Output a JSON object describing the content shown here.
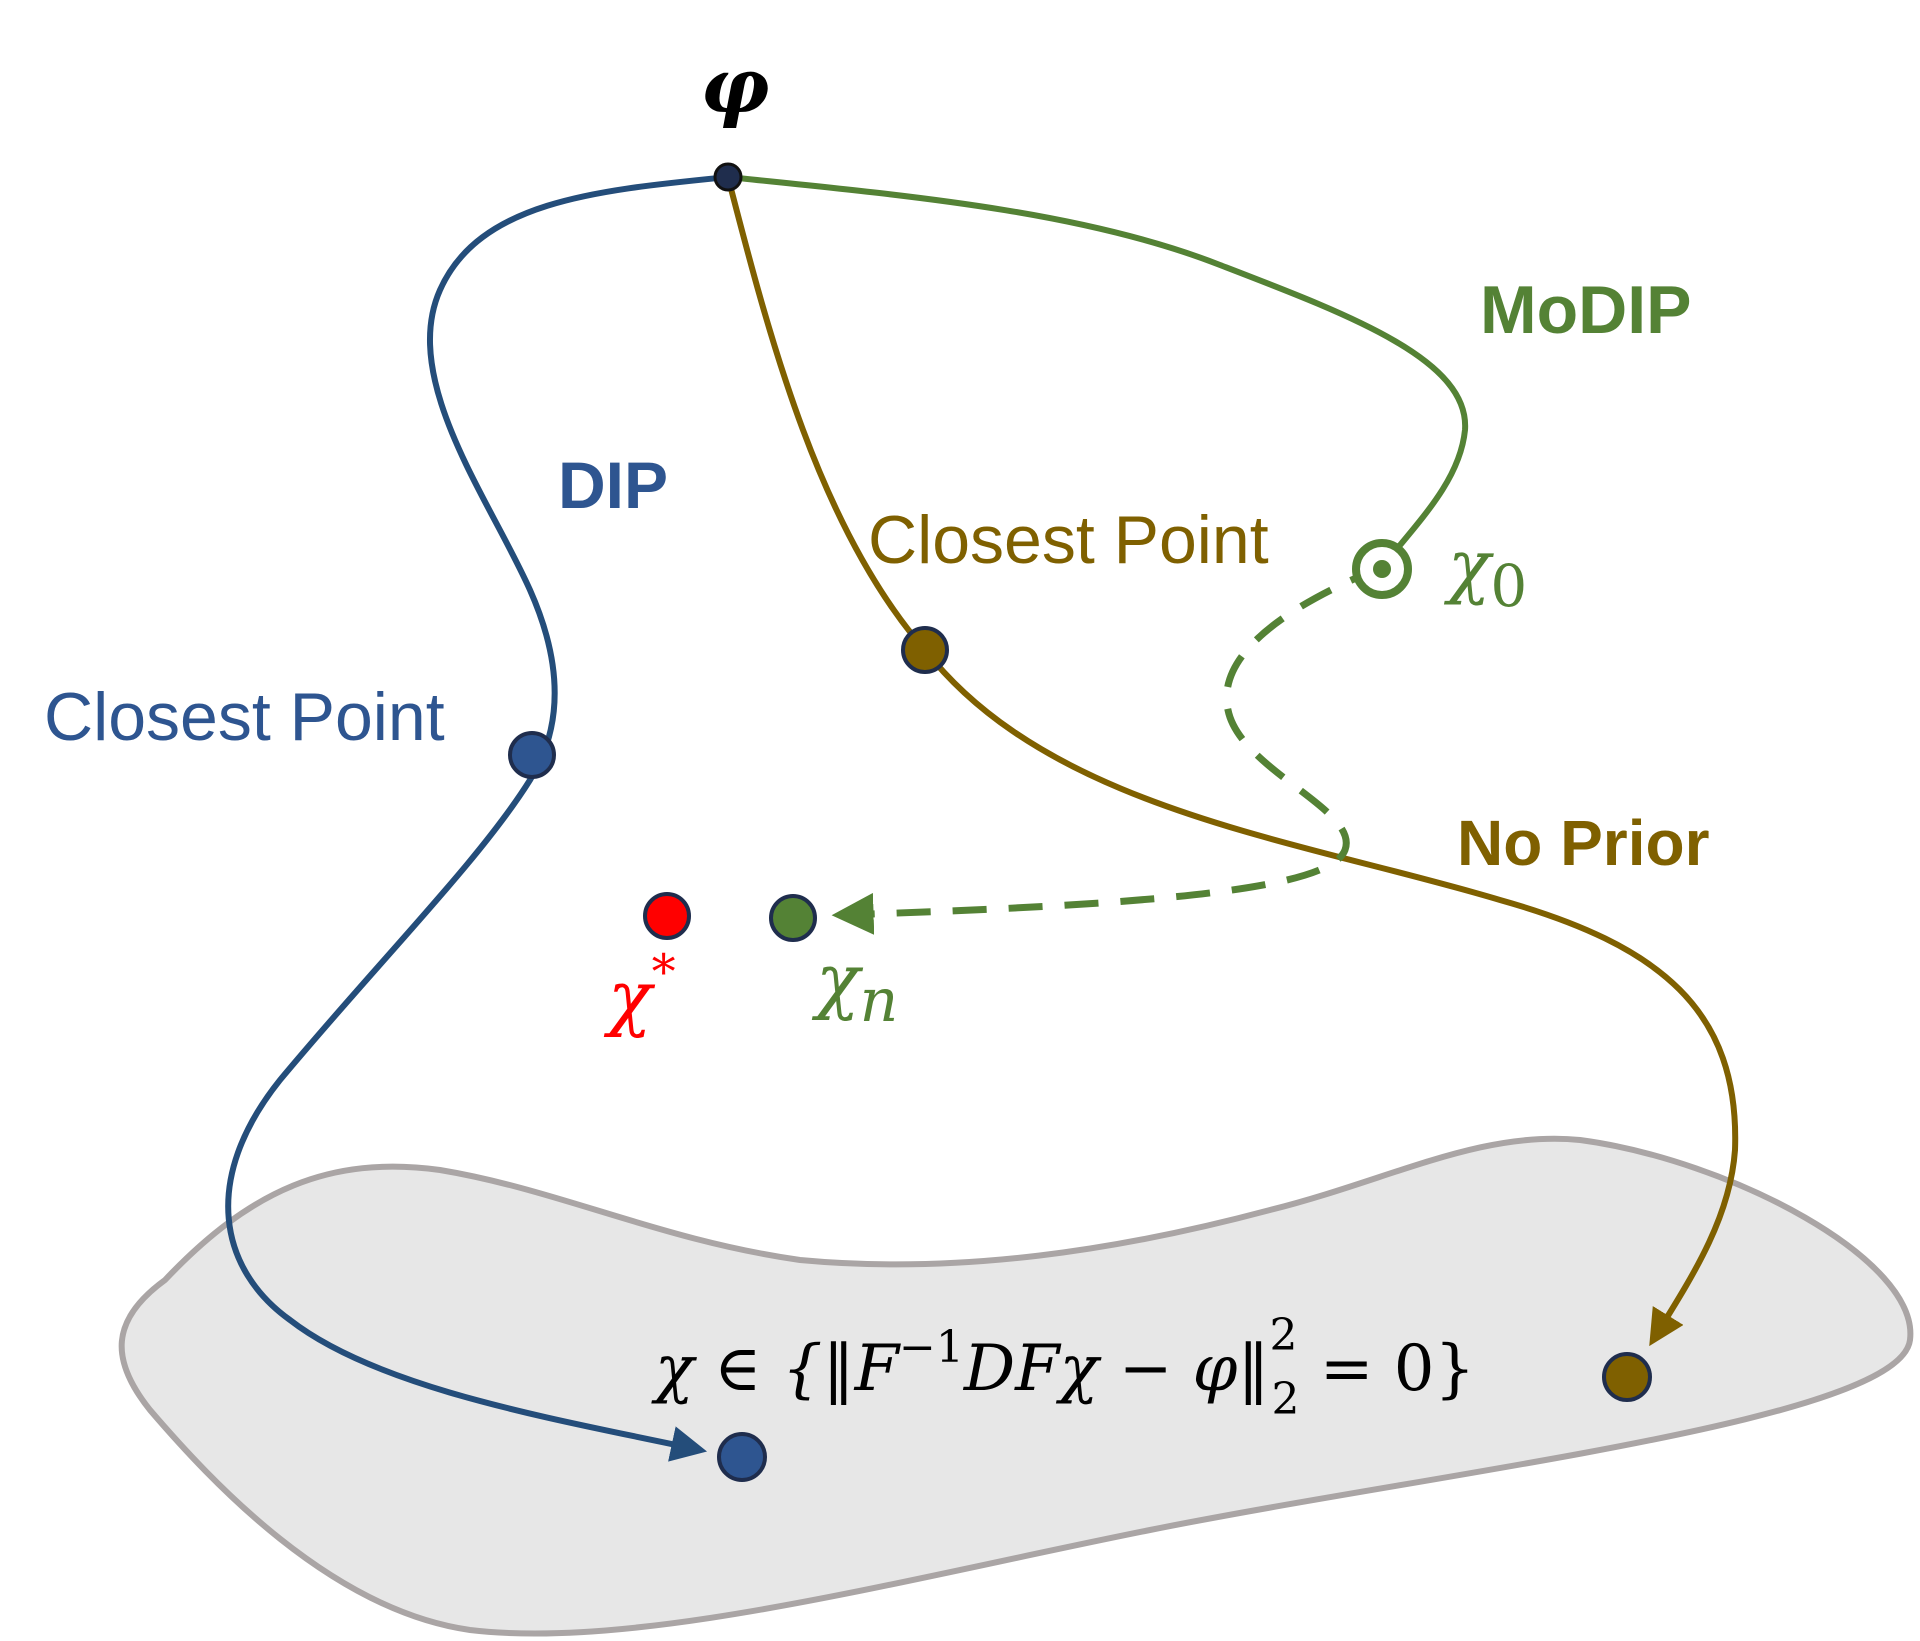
{
  "colors": {
    "dip": "#2e5590",
    "dip_curve": "#244d7a",
    "modip": "#548235",
    "noprior": "#7f6000",
    "target": "#ff0000",
    "region_fill": "#e7e7e7",
    "region_stroke": "#aaa5a5",
    "point_stroke": "#1f2d4d"
  },
  "labels": {
    "phi": "φ",
    "modip": "MoDIP",
    "dip": "DIP",
    "no_prior": "No Prior",
    "closest_point_noprior": "Closest Point",
    "closest_point_dip": "Closest Point",
    "chi_zero": {
      "base": "χ",
      "sub": "0"
    },
    "chi_n": {
      "base": "χ",
      "sub": "n"
    },
    "chi_star": {
      "base": "χ",
      "sup": "*"
    },
    "constraint": {
      "part1": "χ ∈ {‖F",
      "sup1": "−1",
      "part2": "DFχ − φ‖",
      "sup2": "2",
      "sub2": "2",
      "part3": " = 0}"
    }
  }
}
